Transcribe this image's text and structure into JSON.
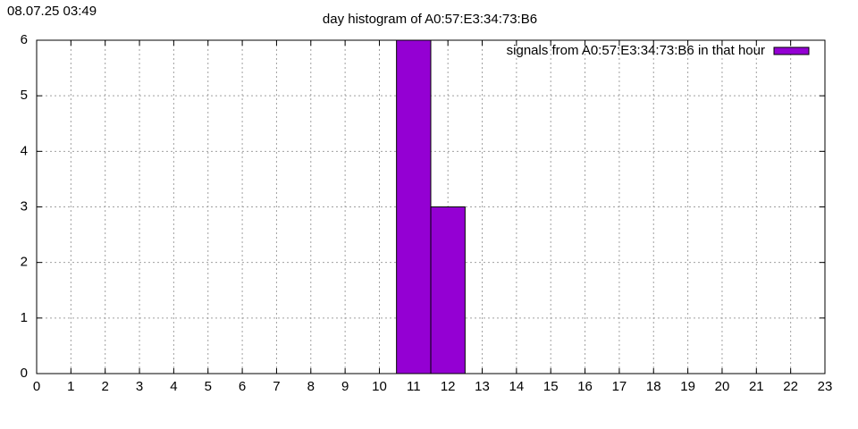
{
  "timestamp": "08.07.25 03:49",
  "chart_data": {
    "type": "histogram",
    "title": "day histogram of A0:57:E3:34:73:B6",
    "series_name": "signals from A0:57:E3:34:73:B6 in that hour",
    "bins": [
      10.5,
      11.5,
      12.5
    ],
    "values": [
      6,
      3
    ],
    "color": "#9400d3",
    "xlim": [
      0,
      23
    ],
    "xticks": [
      0,
      1,
      2,
      3,
      4,
      5,
      6,
      7,
      8,
      9,
      10,
      11,
      12,
      13,
      14,
      15,
      16,
      17,
      18,
      19,
      20,
      21,
      22,
      23
    ],
    "ylim": [
      0,
      6
    ],
    "yticks": [
      0,
      1,
      2,
      3,
      4,
      5,
      6
    ],
    "grid": true,
    "legend": "top-right"
  }
}
